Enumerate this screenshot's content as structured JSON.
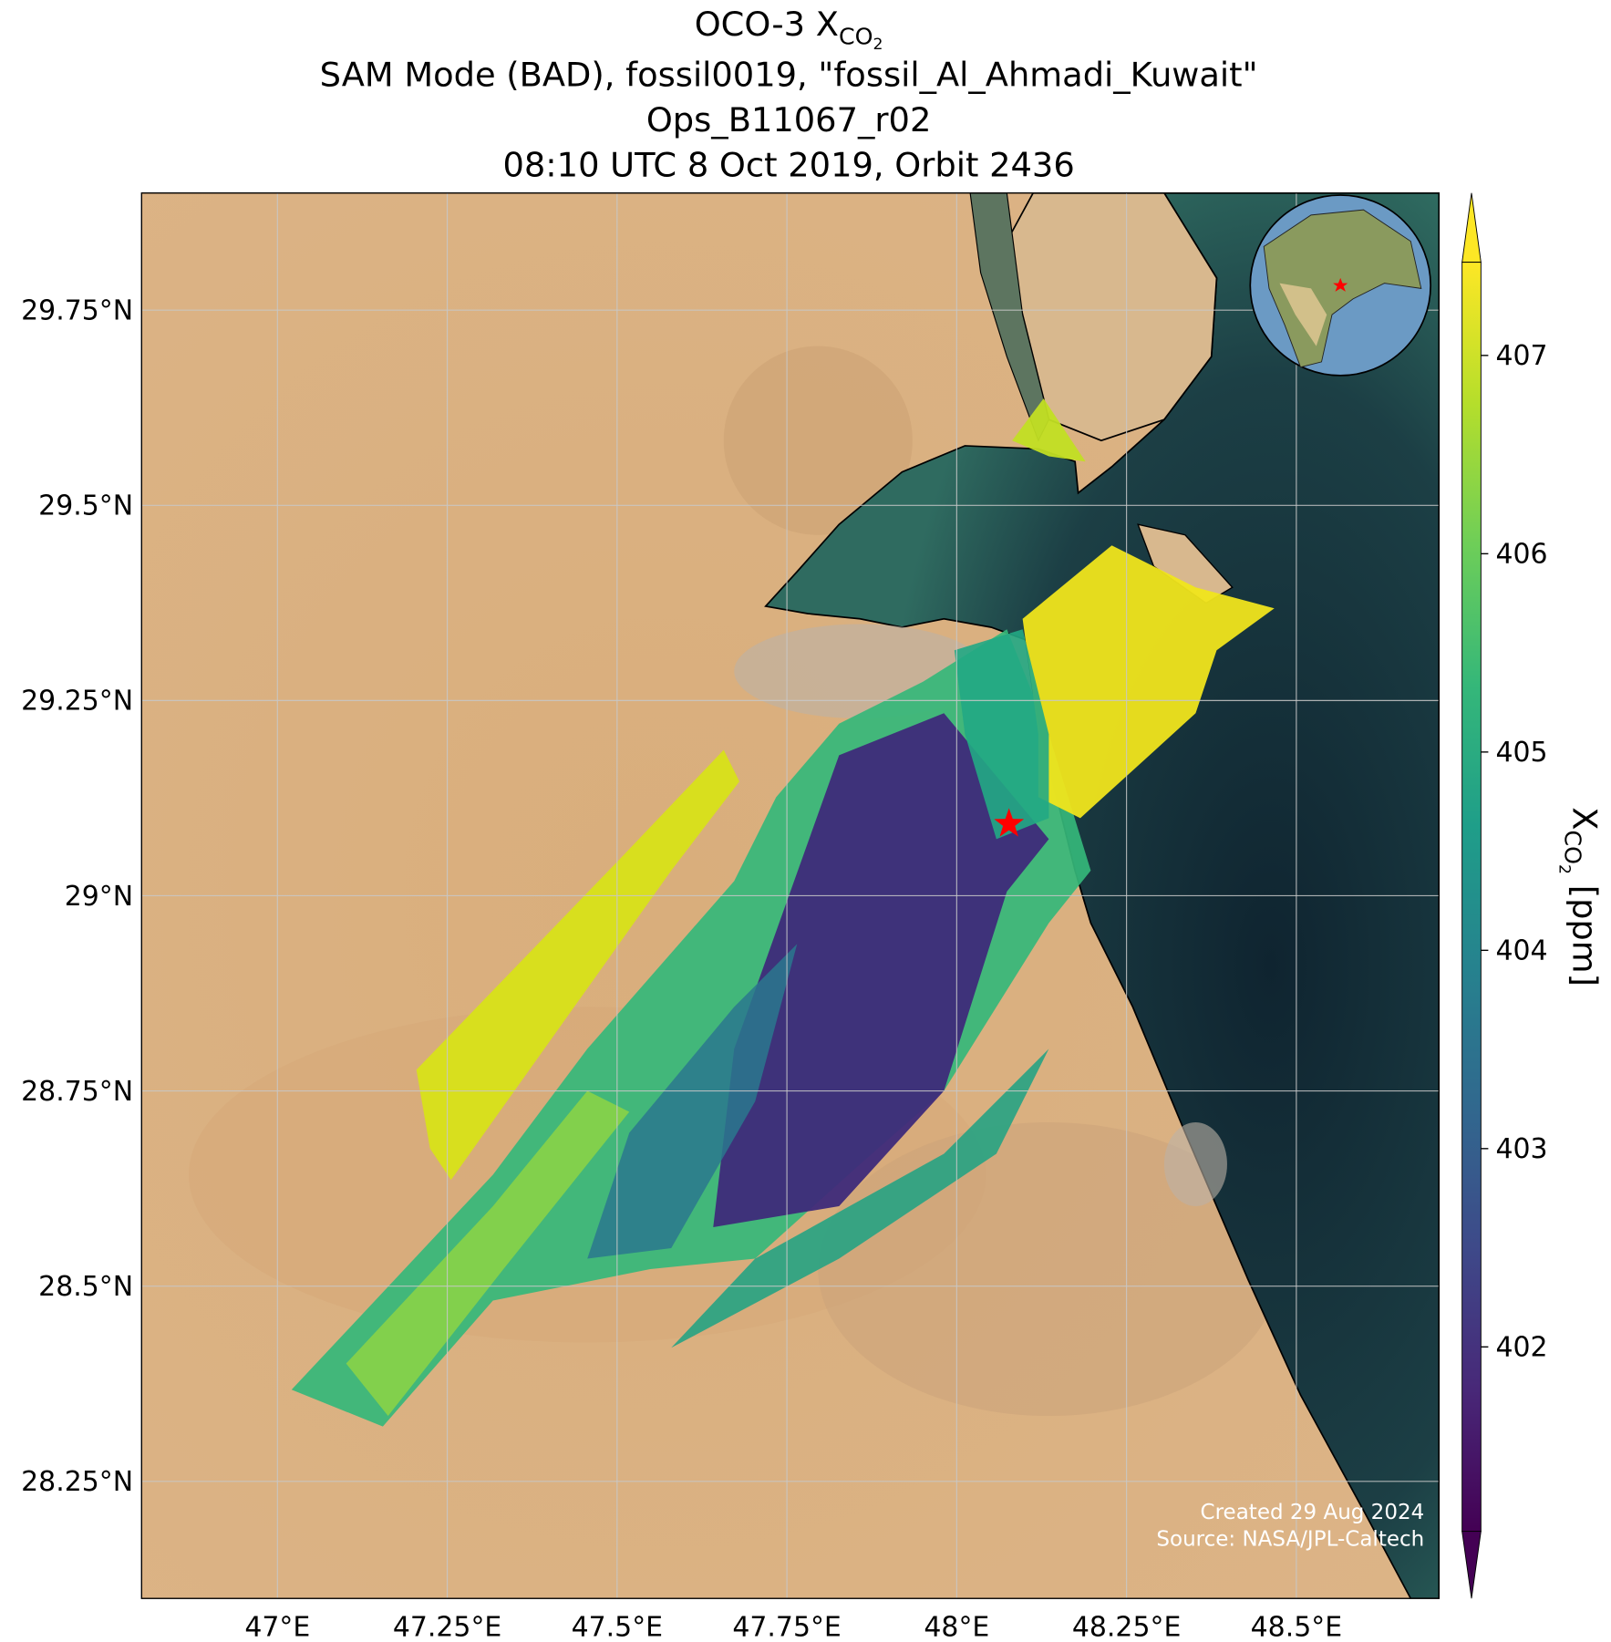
{
  "map": {
    "type": "map",
    "title": {
      "main": "OCO-3 X",
      "sub": "CO",
      "subsub": "2"
    },
    "subtitle_lines": [
      "SAM Mode (BAD), fossil0019, \"fossil_Al_Ahmadi_Kuwait\"",
      "Ops_B11067_r02",
      "08:10 UTC 8 Oct 2019, Orbit 2436"
    ],
    "xlim": [
      46.8,
      48.71
    ],
    "ylim": [
      28.1,
      29.9
    ],
    "xticks": [
      {
        "value": 47,
        "label": "47°E"
      },
      {
        "value": 47.25,
        "label": "47.25°E"
      },
      {
        "value": 47.5,
        "label": "47.5°E"
      },
      {
        "value": 47.75,
        "label": "47.75°E"
      },
      {
        "value": 48,
        "label": "48°E"
      },
      {
        "value": 48.25,
        "label": "48.25°E"
      },
      {
        "value": 48.5,
        "label": "48.5°E"
      }
    ],
    "yticks": [
      {
        "value": 28.25,
        "label": "28.25°N"
      },
      {
        "value": 28.5,
        "label": "28.5°N"
      },
      {
        "value": 28.75,
        "label": "28.75°N"
      },
      {
        "value": 29,
        "label": "29°N"
      },
      {
        "value": 29.25,
        "label": "29.25°N"
      },
      {
        "value": 29.5,
        "label": "29.5°N"
      },
      {
        "value": 29.75,
        "label": "29.75°N"
      }
    ],
    "grid": true,
    "site": {
      "lon": 48.077,
      "lat": 29.092,
      "color": "#ff0000"
    },
    "colorbar": {
      "lim": [
        401.07,
        407.47
      ],
      "ticks": [
        402,
        403,
        404,
        405,
        406,
        407
      ],
      "label": {
        "main": "X",
        "sub": "CO",
        "subsub": "2",
        "unit": " [ppm]"
      },
      "colors": [
        "#440154",
        "#482878",
        "#3e4989",
        "#31688e",
        "#26828e",
        "#1f9e89",
        "#35b779",
        "#6ece58",
        "#b5de2b",
        "#fde725"
      ]
    },
    "credits": [
      "Created 29 Aug 2024",
      "Source: NASA/JPL-Caltech"
    ]
  }
}
